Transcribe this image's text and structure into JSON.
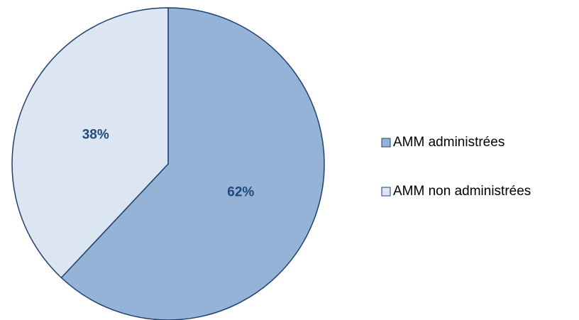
{
  "chart_data": {
    "type": "pie",
    "categories": [
      "AMM administrées",
      "AMM non administrées"
    ],
    "values": [
      62,
      38
    ],
    "value_labels": [
      "62%",
      "38%"
    ],
    "colors": [
      "#95b3d7",
      "#dce6f2"
    ],
    "legend": "right"
  }
}
